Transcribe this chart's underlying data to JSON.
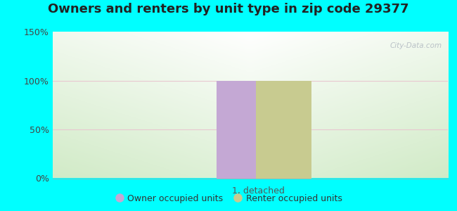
{
  "title": "Owners and renters by unit type in zip code 29377",
  "title_fontsize": 13,
  "categories": [
    "1, detached"
  ],
  "owner_values": [
    100
  ],
  "renter_values": [
    100
  ],
  "owner_color": "#c4a8d4",
  "renter_color": "#c8cb90",
  "ylim": [
    0,
    150
  ],
  "yticks": [
    0,
    50,
    100,
    150
  ],
  "ytick_labels": [
    "0%",
    "50%",
    "100%",
    "150%"
  ],
  "bar_width": 0.28,
  "outer_bg": "#00ffff",
  "watermark": "City-Data.com",
  "legend_owner": "Owner occupied units",
  "legend_renter": "Renter occupied units",
  "tick_fontsize": 9,
  "xlabel_fontsize": 9,
  "grid_color": "#e8c8d0",
  "grid_linewidth": 0.8
}
